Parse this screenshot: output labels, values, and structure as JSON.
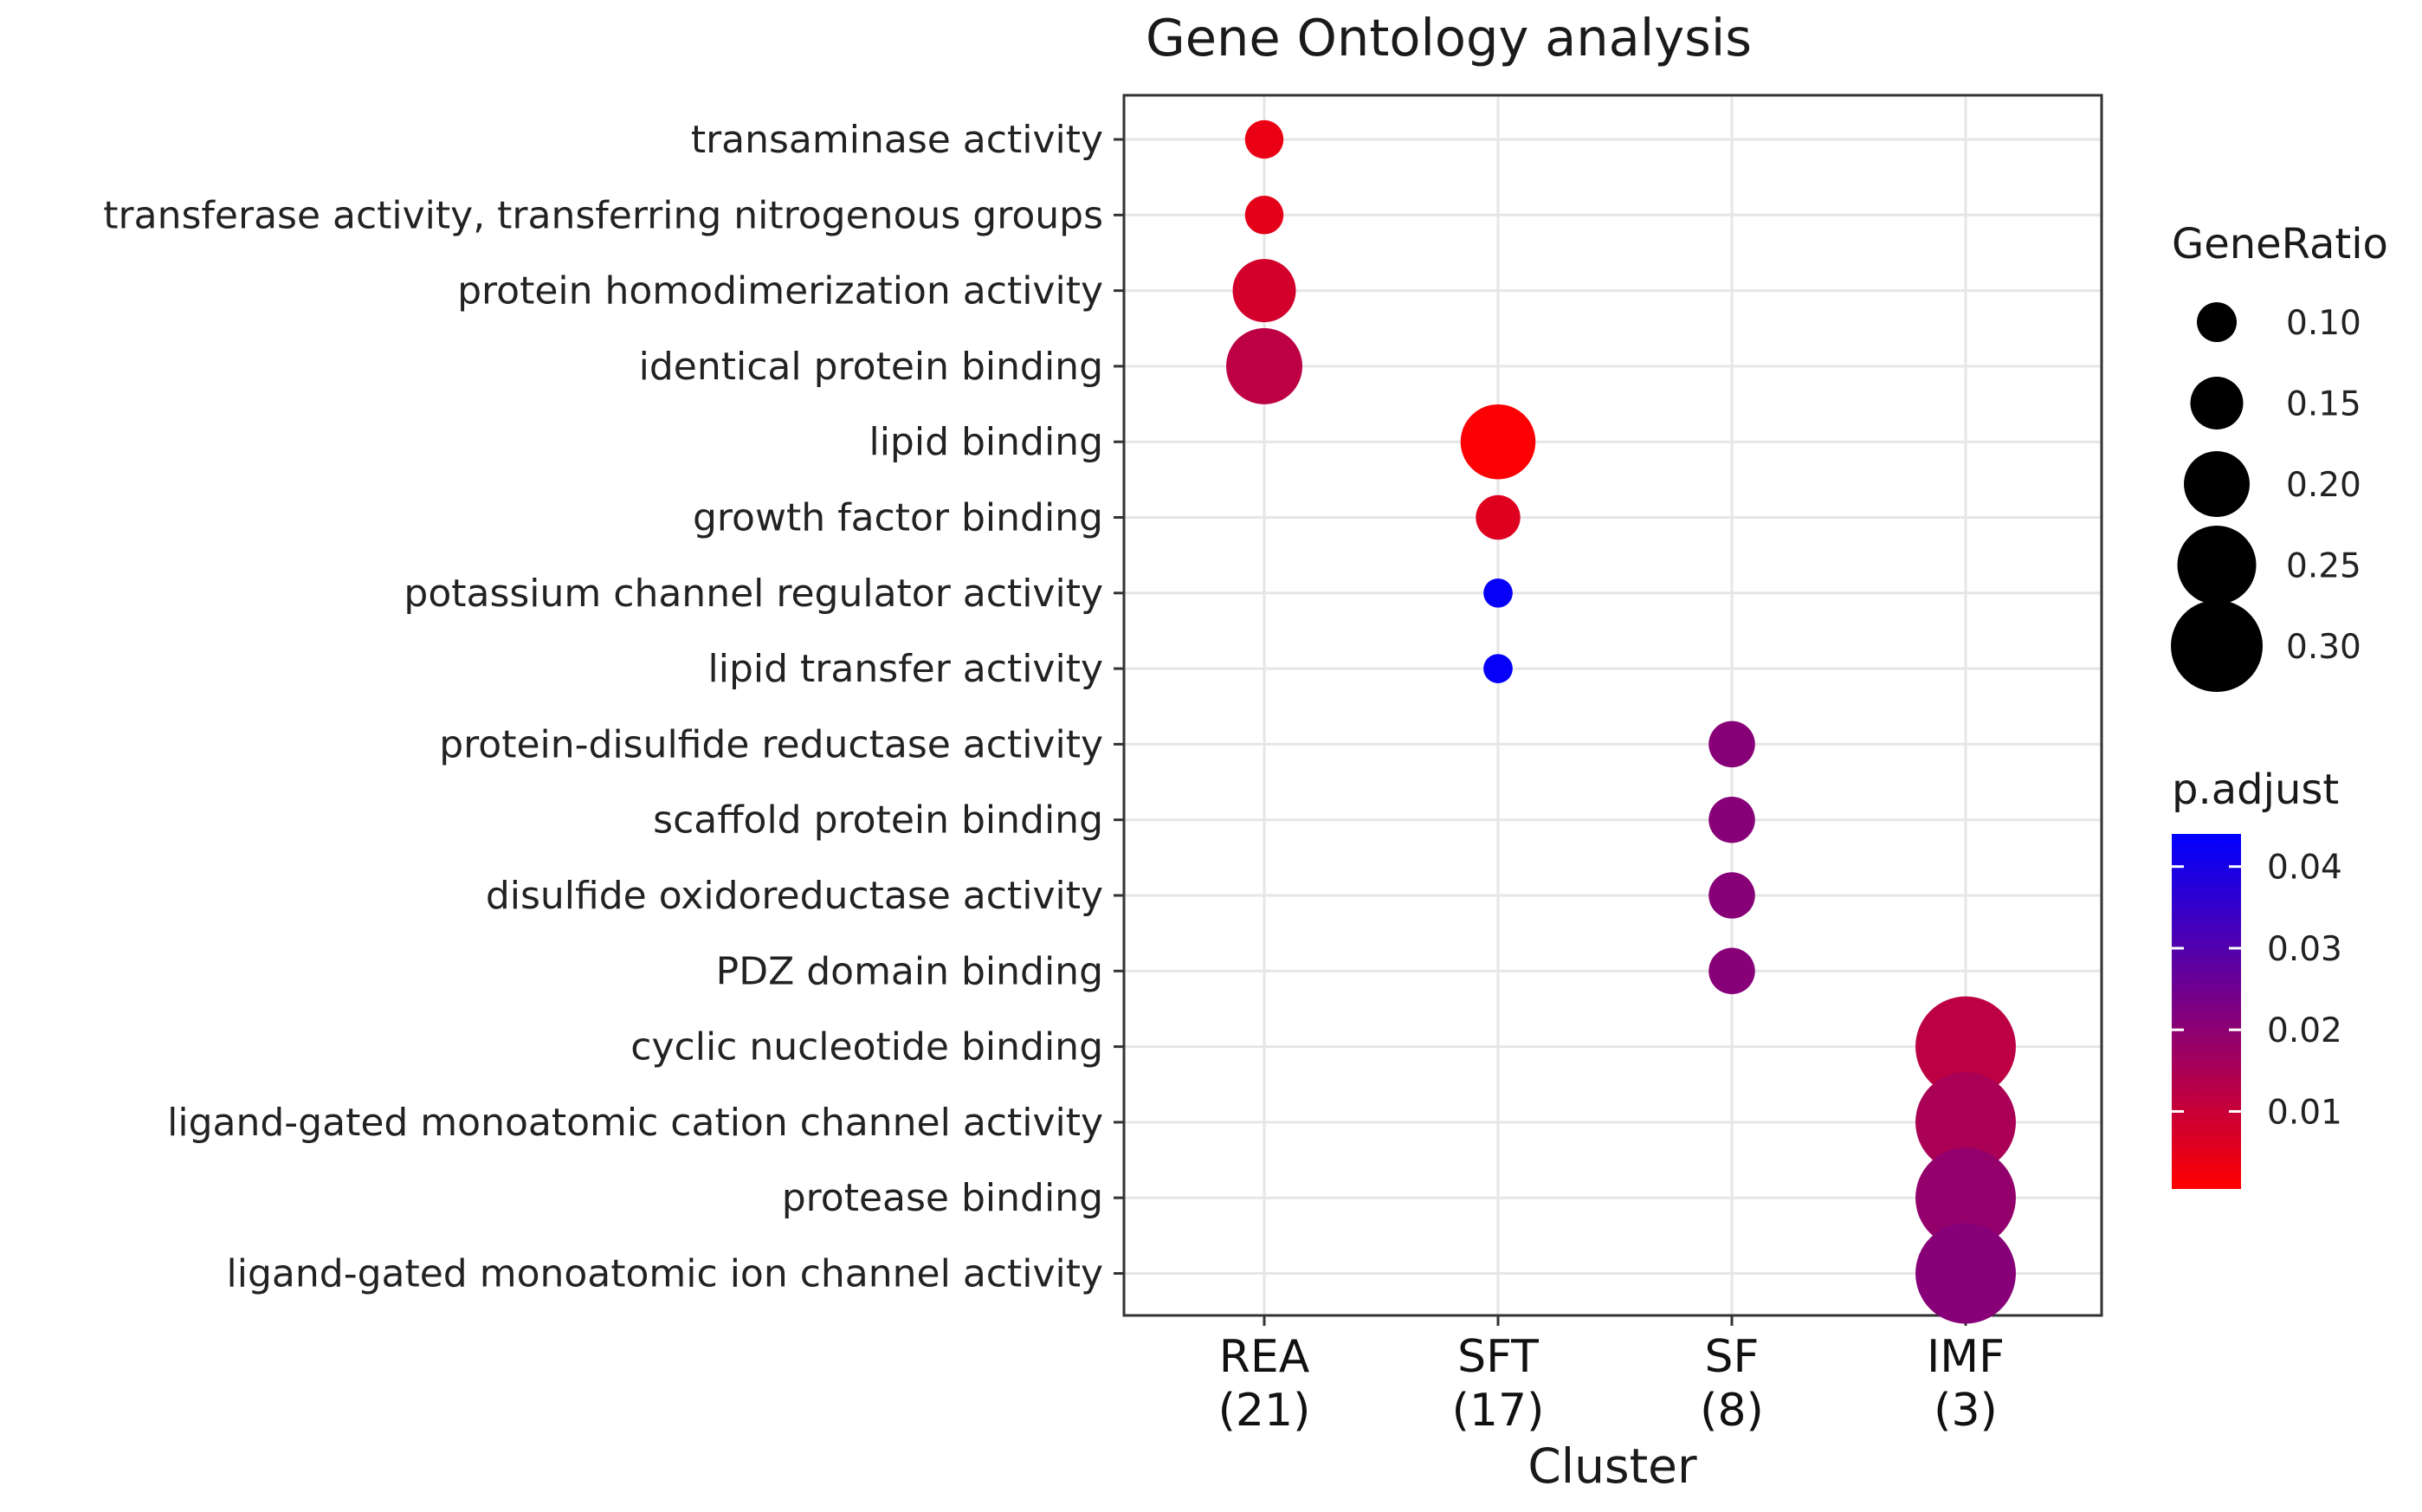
{
  "chart_data": {
    "type": "scatter",
    "title": "Gene Ontology analysis",
    "xlabel": "Cluster",
    "ylabel": "",
    "clusters": [
      {
        "name": "REA",
        "count": "(21)"
      },
      {
        "name": "SFT",
        "count": "(17)"
      },
      {
        "name": "SF",
        "count": "(8)"
      },
      {
        "name": "IMF",
        "count": "(3)"
      }
    ],
    "terms": [
      "transaminase activity",
      "transferase activity, transferring nitrogenous groups",
      "protein homodimerization activity",
      "identical protein binding",
      "lipid binding",
      "growth factor binding",
      "potassium channel regulator activity",
      "lipid transfer activity",
      "protein-disulfide reductase activity",
      "scaffold protein binding",
      "disulfide oxidoreductase activity",
      "PDZ domain binding",
      "cyclic nucleotide binding",
      "ligand-gated monoatomic cation channel activity",
      "protease binding",
      "ligand-gated monoatomic ion channel activity"
    ],
    "points": [
      {
        "cluster": "REA",
        "term": "transaminase activity",
        "gene_ratio": 0.095,
        "p_adjust": 0.004
      },
      {
        "cluster": "REA",
        "term": "transferase activity, transferring nitrogenous groups",
        "gene_ratio": 0.095,
        "p_adjust": 0.005
      },
      {
        "cluster": "REA",
        "term": "protein homodimerization activity",
        "gene_ratio": 0.19,
        "p_adjust": 0.008
      },
      {
        "cluster": "REA",
        "term": "identical protein binding",
        "gene_ratio": 0.24,
        "p_adjust": 0.012
      },
      {
        "cluster": "SFT",
        "term": "lipid binding",
        "gene_ratio": 0.235,
        "p_adjust": 0.001
      },
      {
        "cluster": "SFT",
        "term": "growth factor binding",
        "gene_ratio": 0.118,
        "p_adjust": 0.006
      },
      {
        "cluster": "SFT",
        "term": "potassium channel regulator activity",
        "gene_ratio": 0.059,
        "p_adjust": 0.043
      },
      {
        "cluster": "SFT",
        "term": "lipid transfer activity",
        "gene_ratio": 0.059,
        "p_adjust": 0.043
      },
      {
        "cluster": "SF",
        "term": "protein-disulfide reductase activity",
        "gene_ratio": 0.125,
        "p_adjust": 0.021
      },
      {
        "cluster": "SF",
        "term": "scaffold protein binding",
        "gene_ratio": 0.125,
        "p_adjust": 0.021
      },
      {
        "cluster": "SF",
        "term": "disulfide oxidoreductase activity",
        "gene_ratio": 0.125,
        "p_adjust": 0.021
      },
      {
        "cluster": "SF",
        "term": "PDZ domain binding",
        "gene_ratio": 0.125,
        "p_adjust": 0.021
      },
      {
        "cluster": "IMF",
        "term": "cyclic nucleotide binding",
        "gene_ratio": 0.333,
        "p_adjust": 0.012
      },
      {
        "cluster": "IMF",
        "term": "ligand-gated monoatomic cation channel activity",
        "gene_ratio": 0.333,
        "p_adjust": 0.015
      },
      {
        "cluster": "IMF",
        "term": "protease binding",
        "gene_ratio": 0.333,
        "p_adjust": 0.019
      },
      {
        "cluster": "IMF",
        "term": "ligand-gated monoatomic ion channel activity",
        "gene_ratio": 0.333,
        "p_adjust": 0.021
      }
    ],
    "size_legend": {
      "title": "GeneRatio",
      "values": [
        0.1,
        0.15,
        0.2,
        0.25,
        0.3
      ],
      "labels": [
        "0.10",
        "0.15",
        "0.20",
        "0.25",
        "0.30"
      ]
    },
    "color_legend": {
      "title": "p.adjust",
      "low_color": "#ff0000",
      "high_color": "#0000ff",
      "range": [
        0.0005,
        0.044
      ],
      "ticks": [
        0.01,
        0.02,
        0.03,
        0.04
      ],
      "tick_labels": [
        "0.01",
        "0.02",
        "0.03",
        "0.04"
      ]
    },
    "grid": true
  }
}
